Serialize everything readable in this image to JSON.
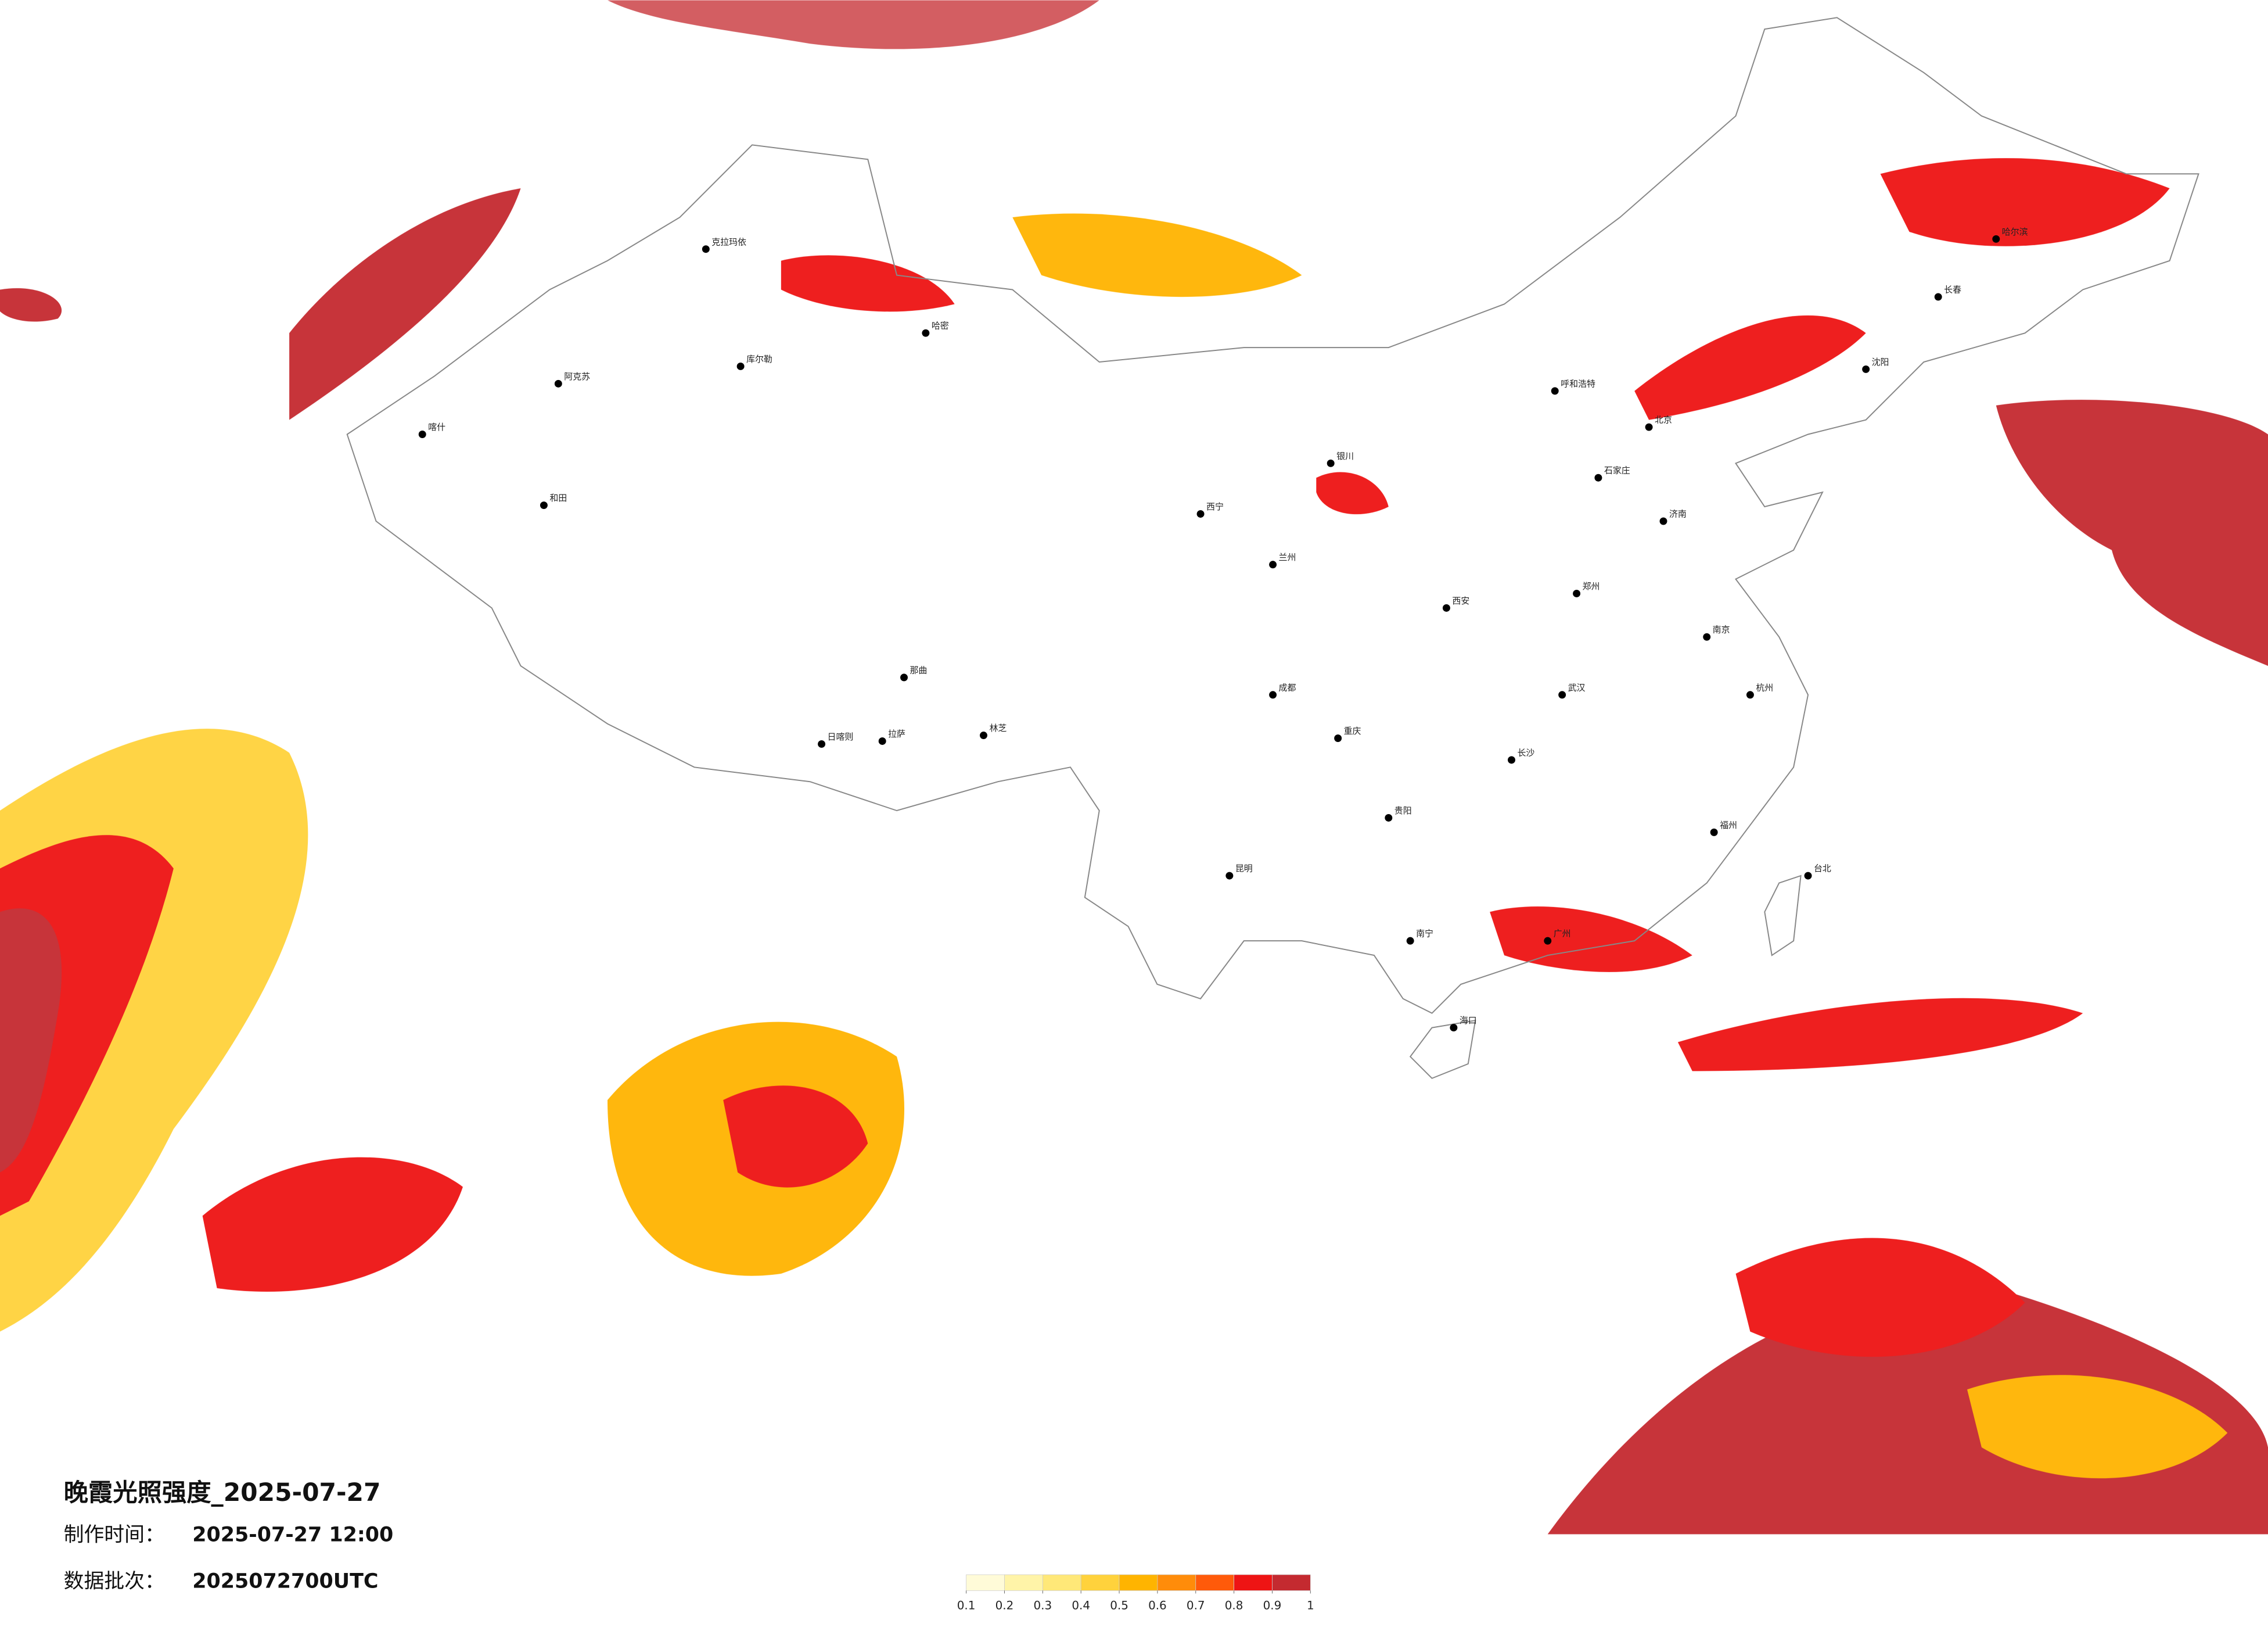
{
  "title": "晚霞光照强度_2025-07-27",
  "made_label": "制作时间：",
  "made_time": "2025-07-27 12:00",
  "batch_label": "数据批次：",
  "batch": "2025072700UTC",
  "legend": {
    "colors": [
      "#fffbd8",
      "#fff4a8",
      "#ffe878",
      "#ffd23c",
      "#ffb400",
      "#ff8c0a",
      "#ff5a0a",
      "#ee1414",
      "#c42a30"
    ],
    "labels": [
      0.1,
      0.2,
      0.3,
      0.4,
      0.5,
      0.6,
      0.7,
      0.8,
      0.9,
      1
    ]
  },
  "cities": [
    "克拉玛依",
    "阿克苏",
    "库尔勒",
    "喀什",
    "和田",
    "哈密",
    "拉萨",
    "日喀则",
    "那曲",
    "林芝",
    "西宁",
    "兰州",
    "银川",
    "呼和浩特",
    "北京",
    "石家庄",
    "济南",
    "郑州",
    "西安",
    "成都",
    "重庆",
    "贵阳",
    "昆明",
    "南宁",
    "广州",
    "长沙",
    "武汉",
    "南京",
    "杭州",
    "福州",
    "台北",
    "海口",
    "沈阳",
    "长春",
    "哈尔滨"
  ]
}
